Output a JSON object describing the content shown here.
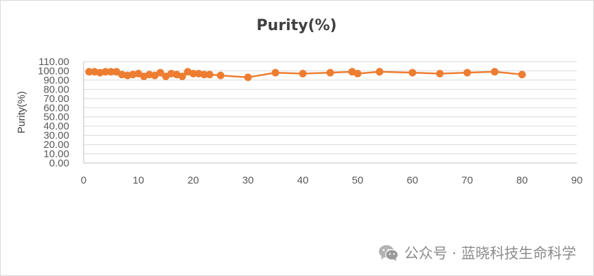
{
  "chart_data": {
    "type": "line",
    "title": "Purity(%)",
    "xlabel": "",
    "ylabel": "Purity(%)",
    "xlim": [
      0,
      90
    ],
    "ylim": [
      0,
      110
    ],
    "x_ticks": [
      "0",
      "10",
      "20",
      "30",
      "40",
      "50",
      "60",
      "70",
      "80",
      "90"
    ],
    "y_ticks": [
      "0.00",
      "10.00",
      "20.00",
      "30.00",
      "40.00",
      "50.00",
      "60.00",
      "70.00",
      "80.00",
      "90.00",
      "100.00",
      "110.00"
    ],
    "grid": "horizontal",
    "legend": "none",
    "series": [
      {
        "color": "#ed7d31",
        "x": [
          1,
          2,
          3,
          4,
          5,
          6,
          7,
          8,
          9,
          10,
          11,
          12,
          13,
          14,
          15,
          16,
          17,
          18,
          19,
          20,
          21,
          22,
          23,
          25,
          30,
          35,
          40,
          45,
          49,
          50,
          54,
          60,
          65,
          70,
          75,
          80
        ],
        "y": [
          99,
          99,
          98,
          99,
          99,
          99,
          96,
          95,
          96,
          97,
          94,
          96,
          95,
          98,
          94,
          97,
          96,
          94,
          99,
          97,
          97,
          96,
          96,
          95,
          93,
          98,
          97,
          98,
          99,
          97,
          99,
          98,
          97,
          98,
          99,
          96
        ]
      }
    ]
  },
  "watermark": {
    "icon": "wechat-icon",
    "text": "公众号 · 蓝晓科技生命科学"
  }
}
